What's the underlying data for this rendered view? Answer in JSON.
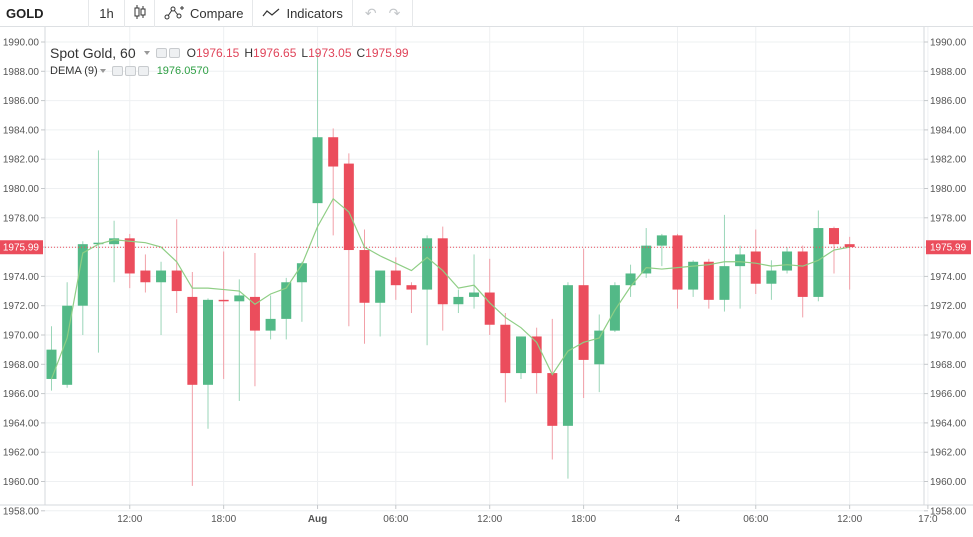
{
  "toolbar": {
    "symbol": "GOLD",
    "interval": "1h",
    "compare_label": "Compare",
    "indicators_label": "Indicators"
  },
  "legend": {
    "title": "Spot Gold, 60",
    "ohlc": [
      {
        "key": "O",
        "value": "1976.15"
      },
      {
        "key": "H",
        "value": "1976.65"
      },
      {
        "key": "L",
        "value": "1973.05"
      },
      {
        "key": "C",
        "value": "1975.99"
      }
    ],
    "indicator_name": "DEMA (9)",
    "indicator_value": "1976.0570"
  },
  "colors": {
    "up": "#53b987",
    "down": "#eb4d5c",
    "dema": "#8fce85",
    "last_price": "#eb4d5c"
  },
  "chart_data": {
    "type": "candlestick",
    "ylim": [
      1958,
      1990
    ],
    "y_ticks": [
      "1990.00",
      "1988.00",
      "1986.00",
      "1984.00",
      "1982.00",
      "1980.00",
      "1978.00",
      "1976.00",
      "1974.00",
      "1972.00",
      "1970.00",
      "1968.00",
      "1966.00",
      "1964.00",
      "1962.00",
      "1960.00",
      "1958.00"
    ],
    "x_ticks": [
      {
        "label": "12:00",
        "bar": 5
      },
      {
        "label": "18:00",
        "bar": 11
      },
      {
        "label": "Aug",
        "bar": 17
      },
      {
        "label": "06:00",
        "bar": 22
      },
      {
        "label": "12:00",
        "bar": 28
      },
      {
        "label": "18:00",
        "bar": 34
      },
      {
        "label": "4",
        "bar": 40
      },
      {
        "label": "06:00",
        "bar": 45
      },
      {
        "label": "12:00",
        "bar": 51
      },
      {
        "label": "17:0",
        "bar": 56
      }
    ],
    "last_price": 1975.99,
    "last_price_label": "1975.99",
    "candles": [
      {
        "o": 1967.0,
        "h": 1970.6,
        "l": 1966.2,
        "c": 1969.0
      },
      {
        "o": 1966.6,
        "h": 1973.6,
        "l": 1966.4,
        "c": 1972.0
      },
      {
        "o": 1972.0,
        "h": 1976.4,
        "l": 1970.0,
        "c": 1976.2
      },
      {
        "o": 1976.2,
        "h": 1982.6,
        "l": 1968.8,
        "c": 1976.3
      },
      {
        "o": 1976.2,
        "h": 1977.8,
        "l": 1973.6,
        "c": 1976.6
      },
      {
        "o": 1976.6,
        "h": 1976.9,
        "l": 1973.2,
        "c": 1974.2
      },
      {
        "o": 1974.4,
        "h": 1975.5,
        "l": 1972.9,
        "c": 1973.6
      },
      {
        "o": 1973.6,
        "h": 1975.0,
        "l": 1970.0,
        "c": 1974.4
      },
      {
        "o": 1974.4,
        "h": 1977.9,
        "l": 1971.5,
        "c": 1973.0
      },
      {
        "o": 1972.6,
        "h": 1974.3,
        "l": 1959.7,
        "c": 1966.6
      },
      {
        "o": 1966.6,
        "h": 1972.5,
        "l": 1963.6,
        "c": 1972.4
      },
      {
        "o": 1972.4,
        "h": 1975.7,
        "l": 1967.0,
        "c": 1972.3
      },
      {
        "o": 1972.3,
        "h": 1973.8,
        "l": 1965.5,
        "c": 1972.7
      },
      {
        "o": 1972.6,
        "h": 1975.6,
        "l": 1966.5,
        "c": 1970.3
      },
      {
        "o": 1970.3,
        "h": 1972.7,
        "l": 1969.7,
        "c": 1971.1
      },
      {
        "o": 1971.1,
        "h": 1973.9,
        "l": 1969.7,
        "c": 1973.6
      },
      {
        "o": 1973.6,
        "h": 1975.0,
        "l": 1970.9,
        "c": 1974.9
      },
      {
        "o": 1979.0,
        "h": 1989.2,
        "l": 1976.0,
        "c": 1983.5
      },
      {
        "o": 1983.5,
        "h": 1984.1,
        "l": 1976.8,
        "c": 1981.5
      },
      {
        "o": 1981.7,
        "h": 1982.4,
        "l": 1970.6,
        "c": 1975.8
      },
      {
        "o": 1975.8,
        "h": 1977.2,
        "l": 1969.4,
        "c": 1972.2
      },
      {
        "o": 1972.2,
        "h": 1974.3,
        "l": 1969.9,
        "c": 1974.4
      },
      {
        "o": 1974.4,
        "h": 1975.3,
        "l": 1972.4,
        "c": 1973.4
      },
      {
        "o": 1973.4,
        "h": 1973.6,
        "l": 1971.5,
        "c": 1973.1
      },
      {
        "o": 1973.1,
        "h": 1976.8,
        "l": 1969.3,
        "c": 1976.6
      },
      {
        "o": 1976.6,
        "h": 1977.4,
        "l": 1970.3,
        "c": 1972.1
      },
      {
        "o": 1972.1,
        "h": 1973.1,
        "l": 1971.5,
        "c": 1972.6
      },
      {
        "o": 1972.6,
        "h": 1975.5,
        "l": 1971.8,
        "c": 1972.9
      },
      {
        "o": 1972.9,
        "h": 1975.2,
        "l": 1970.0,
        "c": 1970.7
      },
      {
        "o": 1970.7,
        "h": 1971.5,
        "l": 1965.4,
        "c": 1967.4
      },
      {
        "o": 1967.4,
        "h": 1969.6,
        "l": 1967.0,
        "c": 1969.9
      },
      {
        "o": 1969.9,
        "h": 1970.5,
        "l": 1966.0,
        "c": 1967.4
      },
      {
        "o": 1967.4,
        "h": 1971.1,
        "l": 1961.5,
        "c": 1963.8
      },
      {
        "o": 1963.8,
        "h": 1973.6,
        "l": 1960.2,
        "c": 1973.4
      },
      {
        "o": 1973.4,
        "h": 1975.9,
        "l": 1965.7,
        "c": 1968.3
      },
      {
        "o": 1968.0,
        "h": 1971.4,
        "l": 1966.1,
        "c": 1970.3
      },
      {
        "o": 1970.3,
        "h": 1973.6,
        "l": 1970.2,
        "c": 1973.4
      },
      {
        "o": 1973.4,
        "h": 1974.8,
        "l": 1972.6,
        "c": 1974.2
      },
      {
        "o": 1974.2,
        "h": 1977.3,
        "l": 1973.9,
        "c": 1976.1
      },
      {
        "o": 1976.1,
        "h": 1976.9,
        "l": 1974.7,
        "c": 1976.8
      },
      {
        "o": 1976.8,
        "h": 1976.9,
        "l": 1971.8,
        "c": 1973.1
      },
      {
        "o": 1973.1,
        "h": 1975.1,
        "l": 1972.6,
        "c": 1975.0
      },
      {
        "o": 1975.0,
        "h": 1975.2,
        "l": 1971.8,
        "c": 1972.4
      },
      {
        "o": 1972.4,
        "h": 1978.2,
        "l": 1971.6,
        "c": 1974.7
      },
      {
        "o": 1974.7,
        "h": 1976.1,
        "l": 1971.8,
        "c": 1975.5
      },
      {
        "o": 1975.7,
        "h": 1977.2,
        "l": 1972.8,
        "c": 1973.5
      },
      {
        "o": 1973.5,
        "h": 1975.1,
        "l": 1972.4,
        "c": 1974.4
      },
      {
        "o": 1974.4,
        "h": 1976.0,
        "l": 1974.2,
        "c": 1975.7
      },
      {
        "o": 1975.7,
        "h": 1976.1,
        "l": 1971.2,
        "c": 1972.6
      },
      {
        "o": 1972.6,
        "h": 1978.5,
        "l": 1972.3,
        "c": 1977.3
      },
      {
        "o": 1977.3,
        "h": 1977.4,
        "l": 1974.2,
        "c": 1976.2
      },
      {
        "o": 1976.2,
        "h": 1976.7,
        "l": 1973.1,
        "c": 1976.0
      }
    ],
    "dema": [
      1967.0,
      1969.8,
      1975.6,
      1976.2,
      1976.5,
      1976.4,
      1976.3,
      1976.0,
      1975.0,
      1973.2,
      1973.2,
      1973.1,
      1973.0,
      1972.1,
      1972.8,
      1973.2,
      1974.8,
      1977.4,
      1979.3,
      1978.4,
      1976.0,
      1975.4,
      1974.9,
      1974.4,
      1975.3,
      1974.4,
      1973.2,
      1973.4,
      1972.2,
      1971.2,
      1970.5,
      1969.5,
      1967.3,
      1968.9,
      1969.5,
      1969.8,
      1971.7,
      1973.3,
      1974.6,
      1974.5,
      1974.6,
      1974.7,
      1974.8,
      1975.0,
      1975.0,
      1974.9,
      1974.7,
      1974.8,
      1974.7,
      1975.1,
      1975.8,
      1976.0
    ]
  }
}
